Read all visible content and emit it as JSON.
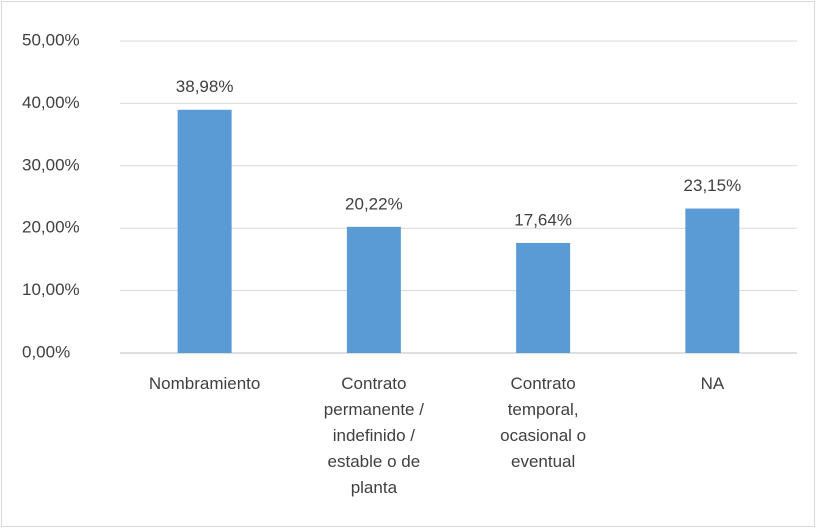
{
  "chart_data": {
    "type": "bar",
    "categories": [
      "Nombramiento",
      "Contrato permanente / indefinido / estable o de planta",
      "Contrato temporal, ocasional o eventual",
      "NA"
    ],
    "values": [
      38.98,
      20.22,
      17.64,
      23.15
    ],
    "value_labels": [
      "38,98%",
      "20,22%",
      "17,64%",
      "23,15%"
    ],
    "color": "#5b9bd5",
    "ylim": [
      0,
      50
    ],
    "yticks": [
      {
        "value": 0,
        "label": "0,00%"
      },
      {
        "value": 10,
        "label": "10,00%"
      },
      {
        "value": 20,
        "label": "20,00%"
      },
      {
        "value": 30,
        "label": "30,00%"
      },
      {
        "value": 40,
        "label": "40,00%"
      },
      {
        "value": 50,
        "label": "50,00%"
      }
    ],
    "grid": true
  }
}
